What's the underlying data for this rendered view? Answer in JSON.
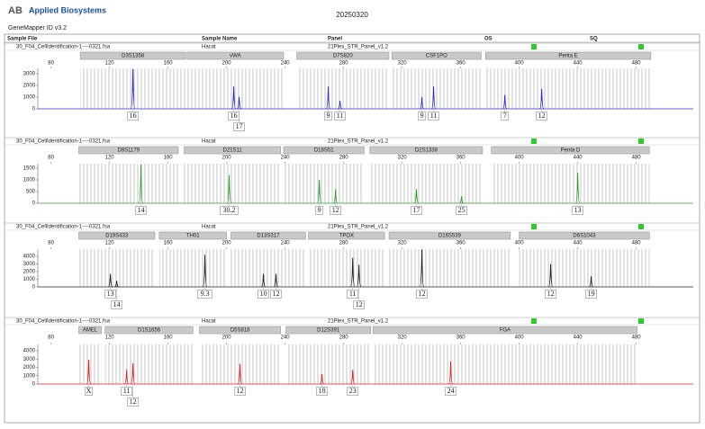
{
  "header": {
    "logo_mark": "AB",
    "logo": "Applied Biosystems",
    "software": "GeneMapper ID v3.2",
    "date": "20250320",
    "columns": [
      "Sample File",
      "Sample Name",
      "Panel",
      "OS",
      "SQ"
    ]
  },
  "chart_data": [
    {
      "type": "peak",
      "sample_file": "30_F04_CellIdentification-1----0321.fsa",
      "sample_name": "Hacat",
      "panel": "21Plex_STR_Panel_v1.2",
      "color": "#2b2bd6",
      "xlim": [
        71,
        519
      ],
      "xticks": [
        80,
        120,
        160,
        200,
        240,
        280,
        320,
        360,
        400,
        440,
        480
      ],
      "ylim": [
        0,
        3450
      ],
      "yticks": [
        0,
        1000,
        2000,
        3000
      ],
      "markers": [
        {
          "name": "D3S1358",
          "range": [
            100,
            172
          ]
        },
        {
          "name": "vWA",
          "range": [
            173,
            239
          ]
        },
        {
          "name": "D7S820",
          "range": [
            248,
            311
          ]
        },
        {
          "name": "CSF1PO",
          "range": [
            313,
            374
          ]
        },
        {
          "name": "Penta E",
          "range": [
            377,
            490
          ]
        }
      ],
      "peaks": {
        "x": [
          136,
          204.9,
          208.6,
          269.5,
          277.5,
          333.5,
          341.5,
          390.2,
          415.4
        ],
        "values": [
          3400,
          1900,
          1000,
          1900,
          700,
          1000,
          1900,
          1200,
          1700
        ],
        "labels": [
          "16",
          "16",
          "17",
          "9",
          "11",
          "9",
          "11",
          "7",
          "12"
        ]
      }
    },
    {
      "type": "peak",
      "sample_file": "30_F04_CellIdentification-1----0321.fsa",
      "sample_name": "Hacat",
      "panel": "21Plex_STR_Panel_v1.2",
      "color": "#2ca02c",
      "xlim": [
        71,
        519
      ],
      "xticks": [
        80,
        120,
        160,
        200,
        240,
        280,
        320,
        360,
        400,
        440,
        480
      ],
      "ylim": [
        0,
        1690
      ],
      "yticks": [
        0,
        500,
        1000,
        1500
      ],
      "markers": [
        {
          "name": "D8S1179",
          "range": [
            99,
            167
          ]
        },
        {
          "name": "D21S11",
          "range": [
            171,
            237
          ]
        },
        {
          "name": "D18S51",
          "range": [
            239,
            294
          ]
        },
        {
          "name": "D2S1338",
          "range": [
            298,
            375
          ]
        },
        {
          "name": "Penta D",
          "range": [
            381,
            489
          ]
        }
      ],
      "peaks": {
        "x": [
          141.5,
          201.8,
          263.4,
          274.5,
          329.8,
          360.6,
          440
        ],
        "values": [
          1650,
          1200,
          1000,
          600,
          600,
          300,
          1300
        ],
        "labels": [
          "14",
          "30.2",
          "9",
          "12",
          "17",
          "25",
          "13"
        ]
      }
    },
    {
      "type": "peak",
      "sample_file": "30_F04_CellIdentification-1----0321.fsa",
      "sample_name": "Hacat",
      "panel": "21Plex_STR_Panel_v1.2",
      "color": "#222222",
      "xlim": [
        71,
        519
      ],
      "xticks": [
        80,
        120,
        160,
        200,
        240,
        280,
        320,
        360,
        400,
        440,
        480
      ],
      "ylim": [
        0,
        4940
      ],
      "yticks": [
        0,
        1000,
        2000,
        3000,
        4000
      ],
      "markers": [
        {
          "name": "D19S433",
          "range": [
            99,
            151
          ]
        },
        {
          "name": "TH01",
          "range": [
            154,
            200
          ]
        },
        {
          "name": "D13S317",
          "range": [
            203,
            254
          ]
        },
        {
          "name": "TPOX",
          "range": [
            256,
            308
          ]
        },
        {
          "name": "D16S539",
          "range": [
            311,
            394
          ]
        },
        {
          "name": "D6S1043",
          "range": [
            400,
            489
          ]
        }
      ],
      "peaks": {
        "x": [
          120.6,
          124.9,
          185.2,
          225.2,
          233.8,
          286.2,
          290.5,
          333.5,
          421.5,
          449.2
        ],
        "values": [
          1700,
          800,
          4200,
          1700,
          1700,
          3800,
          2900,
          4900,
          3000,
          1400
        ],
        "labels": [
          "13",
          "14",
          "9.3",
          "10",
          "12",
          "11",
          "12",
          "12",
          "12",
          "19"
        ]
      }
    },
    {
      "type": "peak",
      "sample_file": "30_F04_CellIdentification-1----0321.fsa",
      "sample_name": "Hacat",
      "panel": "21Plex_STR_Panel_v1.2",
      "color": "#e0201b",
      "xlim": [
        71,
        519
      ],
      "xticks": [
        80,
        120,
        160,
        200,
        240,
        280,
        320,
        360,
        400,
        440,
        480
      ],
      "ylim": [
        0,
        4760
      ],
      "yticks": [
        0,
        1000,
        2000,
        3000,
        4000
      ],
      "markers": [
        {
          "name": "AMEL",
          "range": [
            99,
            114.5
          ]
        },
        {
          "name": "D1S1656",
          "range": [
            117,
            177
          ]
        },
        {
          "name": "D5S818",
          "range": [
            181.5,
            237
          ]
        },
        {
          "name": "D12S391",
          "range": [
            240.6,
            298.5
          ]
        },
        {
          "name": "FGA",
          "range": [
            300,
            480.6
          ]
        }
      ],
      "peaks": {
        "x": [
          105.8,
          131.7,
          136,
          209.2,
          265.2,
          286.2,
          353.2
        ],
        "values": [
          2900,
          1700,
          2500,
          2400,
          1200,
          1700,
          2700
        ],
        "labels": [
          "X",
          "11",
          "12",
          "12",
          "18",
          "23",
          "24"
        ]
      }
    }
  ]
}
